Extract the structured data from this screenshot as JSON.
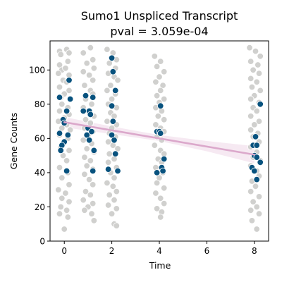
{
  "chart_data": {
    "type": "scatter",
    "title": "Sumo1 Unspliced Transcript",
    "subtitle": "pval = 3.059e-04",
    "xlabel": "Time",
    "ylabel": "Gene Counts",
    "xlim": [
      -0.6,
      8.6
    ],
    "ylim": [
      0,
      117
    ],
    "x_ticks": [
      0,
      2,
      4,
      6,
      8
    ],
    "y_ticks": [
      0,
      20,
      40,
      60,
      80,
      100
    ],
    "grid": false,
    "colors": {
      "background_points": "#d0d0ce",
      "highlight_points": "#08527e",
      "trend_line": "#dba8cb",
      "confidence_band": "#f6e9f2",
      "point_edge": "#ffffff"
    },
    "trend_line": {
      "x": [
        0,
        8
      ],
      "y": [
        69.5,
        50.5
      ]
    },
    "confidence_band": {
      "x": [
        0,
        2,
        4,
        6,
        8
      ],
      "lower": [
        66.5,
        62.5,
        58.5,
        52.5,
        45.5
      ],
      "upper": [
        72.5,
        67.0,
        62.0,
        58.5,
        55.5
      ]
    },
    "series": [
      {
        "role": "background",
        "points": [
          [
            -0.2,
            111
          ],
          [
            0.1,
            112
          ],
          [
            -0.15,
            109
          ],
          [
            0.2,
            110
          ],
          [
            -0.2,
            103
          ],
          [
            0.15,
            105
          ],
          [
            -0.1,
            100
          ],
          [
            0.05,
            101
          ],
          [
            -0.25,
            98
          ],
          [
            0.2,
            97
          ],
          [
            -0.05,
            94
          ],
          [
            0.1,
            93
          ],
          [
            -0.2,
            90
          ],
          [
            0.2,
            88
          ],
          [
            0.0,
            86
          ],
          [
            -0.15,
            84
          ],
          [
            0.25,
            83
          ],
          [
            -0.1,
            80
          ],
          [
            0.15,
            78
          ],
          [
            -0.2,
            76
          ],
          [
            0.2,
            74
          ],
          [
            0.0,
            72
          ],
          [
            -0.25,
            70
          ],
          [
            0.1,
            68
          ],
          [
            -0.1,
            66
          ],
          [
            0.25,
            65
          ],
          [
            -0.2,
            62
          ],
          [
            0.15,
            60
          ],
          [
            0.0,
            58
          ],
          [
            -0.15,
            55
          ],
          [
            0.2,
            53
          ],
          [
            -0.05,
            50
          ],
          [
            0.1,
            47
          ],
          [
            -0.2,
            43
          ],
          [
            0.15,
            40
          ],
          [
            -0.1,
            37
          ],
          [
            0.2,
            33
          ],
          [
            -0.25,
            30
          ],
          [
            0.05,
            28
          ],
          [
            -0.1,
            25
          ],
          [
            0.2,
            23
          ],
          [
            -0.15,
            20
          ],
          [
            0.1,
            18
          ],
          [
            -0.2,
            16
          ],
          [
            0.15,
            14
          ],
          [
            0.0,
            7
          ],
          [
            0.8,
            110
          ],
          [
            1.1,
            113
          ],
          [
            1.2,
            106
          ],
          [
            0.95,
            104
          ],
          [
            1.25,
            101
          ],
          [
            0.8,
            99
          ],
          [
            1.05,
            97
          ],
          [
            1.2,
            94
          ],
          [
            0.85,
            91
          ],
          [
            1.1,
            88
          ],
          [
            1.2,
            86
          ],
          [
            0.9,
            83
          ],
          [
            1.15,
            80
          ],
          [
            0.8,
            78
          ],
          [
            1.05,
            75
          ],
          [
            1.25,
            73
          ],
          [
            0.9,
            71
          ],
          [
            1.1,
            69
          ],
          [
            0.85,
            66
          ],
          [
            1.2,
            64
          ],
          [
            1.0,
            62
          ],
          [
            0.8,
            59
          ],
          [
            1.15,
            57
          ],
          [
            0.95,
            54
          ],
          [
            1.25,
            52
          ],
          [
            0.85,
            49
          ],
          [
            1.1,
            47
          ],
          [
            0.95,
            44
          ],
          [
            1.2,
            42
          ],
          [
            0.85,
            39
          ],
          [
            1.05,
            36
          ],
          [
            1.2,
            33
          ],
          [
            0.9,
            29
          ],
          [
            1.1,
            27
          ],
          [
            0.8,
            24
          ],
          [
            1.2,
            22
          ],
          [
            1.0,
            20
          ],
          [
            0.85,
            18
          ],
          [
            1.15,
            16
          ],
          [
            1.25,
            12
          ],
          [
            1.8,
            112
          ],
          [
            2.05,
            110
          ],
          [
            2.2,
            106
          ],
          [
            1.9,
            104
          ],
          [
            2.15,
            101
          ],
          [
            1.85,
            98
          ],
          [
            2.1,
            96
          ],
          [
            2.25,
            94
          ],
          [
            1.95,
            91
          ],
          [
            1.8,
            88
          ],
          [
            2.15,
            86
          ],
          [
            2.0,
            83
          ],
          [
            1.85,
            80
          ],
          [
            2.2,
            78
          ],
          [
            1.95,
            75
          ],
          [
            2.1,
            73
          ],
          [
            1.8,
            70
          ],
          [
            2.2,
            68
          ],
          [
            2.0,
            66
          ],
          [
            1.9,
            63
          ],
          [
            2.15,
            61
          ],
          [
            1.85,
            58
          ],
          [
            2.05,
            56
          ],
          [
            2.25,
            54
          ],
          [
            1.9,
            51
          ],
          [
            2.1,
            48
          ],
          [
            1.85,
            46
          ],
          [
            2.2,
            43
          ],
          [
            1.95,
            40
          ],
          [
            2.1,
            37
          ],
          [
            1.8,
            34
          ],
          [
            2.05,
            32
          ],
          [
            2.2,
            29
          ],
          [
            1.9,
            27
          ],
          [
            2.1,
            24
          ],
          [
            1.85,
            21
          ],
          [
            2.2,
            19
          ],
          [
            2.0,
            16
          ],
          [
            2.1,
            10
          ],
          [
            2.2,
            9
          ],
          [
            3.8,
            108
          ],
          [
            4.05,
            105
          ],
          [
            3.9,
            102
          ],
          [
            4.2,
            99
          ],
          [
            4.0,
            96
          ],
          [
            3.85,
            93
          ],
          [
            4.15,
            91
          ],
          [
            4.05,
            88
          ],
          [
            3.9,
            85
          ],
          [
            4.2,
            83
          ],
          [
            4.0,
            81
          ],
          [
            3.85,
            78
          ],
          [
            4.1,
            76
          ],
          [
            3.95,
            73
          ],
          [
            4.2,
            71
          ],
          [
            3.85,
            68
          ],
          [
            4.05,
            66
          ],
          [
            4.2,
            64
          ],
          [
            3.9,
            61
          ],
          [
            4.1,
            59
          ],
          [
            3.8,
            56
          ],
          [
            4.05,
            53
          ],
          [
            4.2,
            51
          ],
          [
            3.95,
            48
          ],
          [
            4.1,
            46
          ],
          [
            3.85,
            43
          ],
          [
            4.15,
            40
          ],
          [
            4.0,
            37
          ],
          [
            3.9,
            34
          ],
          [
            4.2,
            31
          ],
          [
            3.85,
            28
          ],
          [
            4.05,
            25
          ],
          [
            4.2,
            22
          ],
          [
            3.9,
            19
          ],
          [
            4.1,
            17
          ],
          [
            4.05,
            14
          ],
          [
            7.8,
            113
          ],
          [
            8.05,
            111
          ],
          [
            8.25,
            108
          ],
          [
            7.85,
            105
          ],
          [
            8.15,
            103
          ],
          [
            7.95,
            100
          ],
          [
            8.2,
            98
          ],
          [
            7.85,
            95
          ],
          [
            8.1,
            93
          ],
          [
            7.9,
            90
          ],
          [
            8.25,
            88
          ],
          [
            8.0,
            85
          ],
          [
            7.85,
            83
          ],
          [
            8.2,
            81
          ],
          [
            7.95,
            78
          ],
          [
            8.1,
            76
          ],
          [
            7.85,
            73
          ],
          [
            8.2,
            70
          ],
          [
            8.0,
            68
          ],
          [
            7.85,
            65
          ],
          [
            8.15,
            63
          ],
          [
            7.95,
            61
          ],
          [
            8.2,
            58
          ],
          [
            7.85,
            55
          ],
          [
            8.1,
            52
          ],
          [
            7.95,
            49
          ],
          [
            8.25,
            47
          ],
          [
            7.85,
            44
          ],
          [
            8.1,
            41
          ],
          [
            8.2,
            38
          ],
          [
            7.9,
            35
          ],
          [
            8.05,
            32
          ],
          [
            7.85,
            29
          ],
          [
            8.2,
            26
          ],
          [
            7.95,
            23
          ],
          [
            8.1,
            20
          ],
          [
            7.85,
            18
          ],
          [
            8.2,
            16
          ],
          [
            7.9,
            12
          ],
          [
            8.1,
            7
          ]
        ]
      },
      {
        "role": "highlight",
        "points": [
          [
            -0.2,
            84
          ],
          [
            0.2,
            94
          ],
          [
            0.25,
            83
          ],
          [
            0.1,
            76
          ],
          [
            -0.05,
            71
          ],
          [
            0.0,
            69
          ],
          [
            -0.2,
            63
          ],
          [
            0.15,
            62
          ],
          [
            0.0,
            58
          ],
          [
            -0.1,
            56
          ],
          [
            -0.15,
            53
          ],
          [
            0.1,
            41
          ],
          [
            0.8,
            76
          ],
          [
            0.9,
            85
          ],
          [
            1.05,
            76
          ],
          [
            1.2,
            84
          ],
          [
            1.1,
            74
          ],
          [
            1.0,
            66
          ],
          [
            0.95,
            62
          ],
          [
            1.15,
            64
          ],
          [
            1.05,
            59
          ],
          [
            1.25,
            53
          ],
          [
            1.2,
            41
          ],
          [
            2.0,
            107
          ],
          [
            2.05,
            99
          ],
          [
            2.15,
            88
          ],
          [
            2.0,
            79
          ],
          [
            2.05,
            70
          ],
          [
            2.0,
            62
          ],
          [
            2.1,
            59
          ],
          [
            2.15,
            51
          ],
          [
            1.85,
            42
          ],
          [
            2.25,
            41
          ],
          [
            4.05,
            79
          ],
          [
            3.9,
            64
          ],
          [
            4.0,
            64
          ],
          [
            4.05,
            63
          ],
          [
            4.2,
            48
          ],
          [
            4.1,
            43
          ],
          [
            3.9,
            40
          ],
          [
            4.15,
            41
          ],
          [
            7.95,
            56
          ],
          [
            8.05,
            61
          ],
          [
            8.1,
            56
          ],
          [
            8.0,
            50
          ],
          [
            8.1,
            49
          ],
          [
            8.25,
            46
          ],
          [
            7.9,
            43
          ],
          [
            8.0,
            41
          ],
          [
            8.1,
            36
          ],
          [
            8.25,
            80
          ]
        ]
      }
    ]
  }
}
